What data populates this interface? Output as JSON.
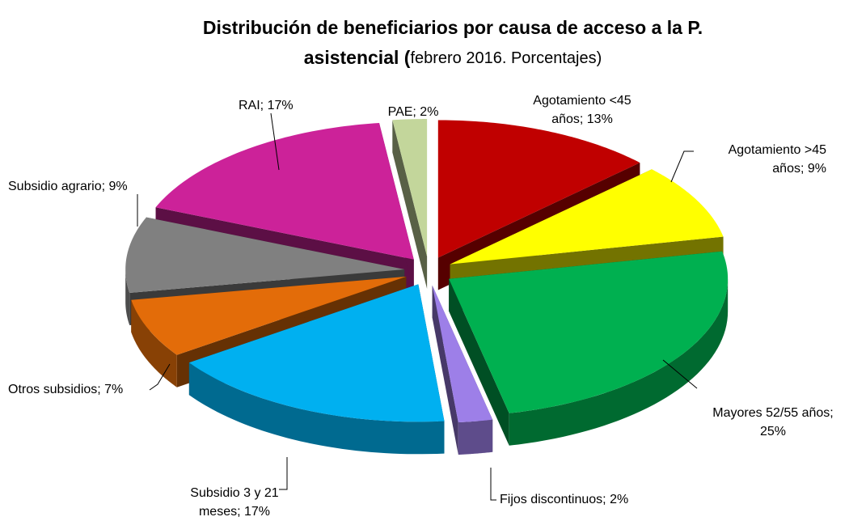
{
  "chart_data": {
    "type": "pie",
    "title": [
      "Distribución de beneficiarios por causa de acceso a la P.",
      "asistencial ("
    ],
    "subtitle": "febrero 2016. Porcentajes)",
    "values": [
      13,
      9,
      25,
      2,
      17,
      7,
      9,
      17,
      2
    ],
    "value_labels": [
      [
        "Agotamiento <45",
        "años; 13%"
      ],
      [
        "Agotamiento >45",
        "años; 9%"
      ],
      [
        "Mayores 52/55 años;",
        "25%"
      ],
      [
        "Fijos discontinuos; 2%"
      ],
      [
        "Subsidio 3 y 21",
        "meses; 17%"
      ],
      [
        "Otros subsidios; 7%"
      ],
      [
        "Subsidio agrario; 9%"
      ],
      [
        "RAI; 17%"
      ],
      [
        "PAE; 2%"
      ]
    ],
    "colors": [
      "#c00000",
      "#ffff00",
      "#00b050",
      "#9d7fe8",
      "#00b0f0",
      "#e36c09",
      "#808080",
      "#cc2299",
      "#c3d69b"
    ]
  }
}
